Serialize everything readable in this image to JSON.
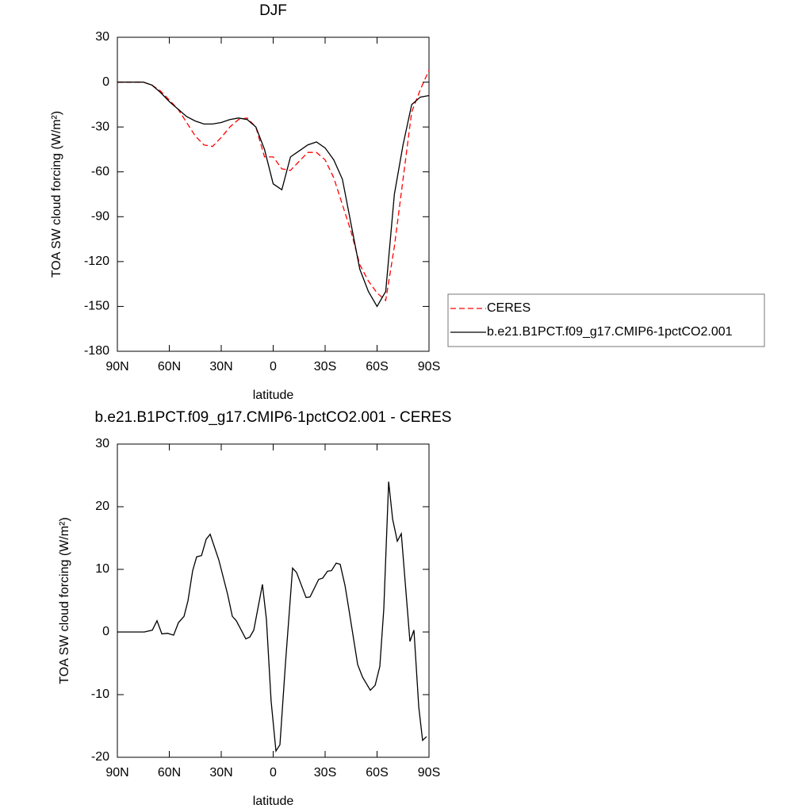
{
  "chart_data": [
    {
      "type": "line",
      "title": "DJF",
      "xlabel": "latitude",
      "ylabel": "TOA SW cloud forcing (W/m²)",
      "x": [
        90,
        85,
        80,
        75,
        70,
        65,
        60,
        55,
        50,
        45,
        40,
        35,
        30,
        25,
        20,
        15,
        10,
        5,
        0,
        -5,
        -10,
        -15,
        -20,
        -25,
        -30,
        -35,
        -40,
        -45,
        -50,
        -55,
        -60,
        -65,
        -70,
        -75,
        -80,
        -85,
        -90
      ],
      "series": [
        {
          "name": "CERES",
          "color": "#ff0000",
          "style": "dashed",
          "values": [
            0,
            0,
            0,
            0,
            -2,
            -6,
            -12,
            -18,
            -27,
            -36,
            -42,
            -43,
            -37,
            -30,
            -25,
            -24,
            -30,
            -50,
            -50,
            -58,
            -59,
            -53,
            -47,
            -47,
            -52,
            -64,
            -82,
            -100,
            -122,
            -133,
            -141,
            -146,
            -110,
            -65,
            -20,
            -5,
            8
          ]
        },
        {
          "name": "b.e21.B1PCT.f09_g17.CMIP6-1pctCO2.001",
          "color": "#000000",
          "style": "solid",
          "values": [
            0,
            0,
            0,
            0,
            -2,
            -7,
            -13,
            -18,
            -23,
            -26,
            -28,
            -28,
            -27,
            -25,
            -24,
            -25,
            -30,
            -45,
            -68,
            -72,
            -50,
            -46,
            -42,
            -40,
            -44,
            -52,
            -65,
            -95,
            -125,
            -140,
            -150,
            -140,
            -75,
            -42,
            -15,
            -10,
            -9
          ]
        }
      ],
      "xlim": [
        90,
        -90
      ],
      "xticks": [
        {
          "value": 90,
          "label": "90N"
        },
        {
          "value": 60,
          "label": "60N"
        },
        {
          "value": 30,
          "label": "30N"
        },
        0,
        {
          "value": -30,
          "label": "30S"
        },
        {
          "value": -60,
          "label": "60S"
        },
        {
          "value": -90,
          "label": "90S"
        }
      ],
      "ylim": [
        -180,
        30
      ],
      "yticks": [
        -180,
        -150,
        -120,
        -90,
        -60,
        -30,
        0,
        30
      ],
      "legend": "right"
    },
    {
      "type": "line",
      "title": "b.e21.B1PCT.f09_g17.CMIP6-1pctCO2.001 - CERES",
      "xlabel": "latitude",
      "ylabel": "TOA SW cloud forcing (W/m²)",
      "x": [
        90,
        74.4,
        69.8,
        67.1,
        64.3,
        61.1,
        57.5,
        54.7,
        51.5,
        49.2,
        46.5,
        44.2,
        41.4,
        38.7,
        36.4,
        31.4,
        26.3,
        23.6,
        21.3,
        15.8,
        13.5,
        11.2,
        6.2,
        3.9,
        1.2,
        -1.6,
        -3.9,
        -7.1,
        -9.4,
        -11.2,
        -13.5,
        -19,
        -21.3,
        -26.3,
        -28.6,
        -31.4,
        -33.7,
        -36.4,
        -38.7,
        -41.5,
        -43.8,
        -48.8,
        -51.6,
        -56.1,
        -58.9,
        -61.6,
        -63.9,
        -66.7,
        -69,
        -71.7,
        -74,
        -79,
        -81.3,
        -84.1,
        -86.3,
        -88.6
      ],
      "series": [
        {
          "color": "#000000",
          "style": "solid",
          "values": [
            0,
            0,
            0.3,
            1.8,
            -0.3,
            -0.2,
            -0.5,
            1.5,
            2.5,
            5,
            9.8,
            12,
            12.2,
            14.8,
            15.6,
            11.5,
            6,
            2.5,
            1.8,
            -1.1,
            -0.8,
            0.3,
            7.6,
            2,
            -11,
            -19,
            -18,
            -5,
            3.5,
            10.2,
            9.5,
            5.5,
            5.6,
            8.4,
            8.6,
            9.7,
            9.8,
            11,
            10.8,
            7.4,
            3.5,
            -5.2,
            -7.2,
            -9.3,
            -8.5,
            -5.5,
            3.7,
            24,
            18,
            14.5,
            15.7,
            -1.5,
            0.3,
            -12,
            -17.3,
            -16.7
          ]
        }
      ],
      "xlim": [
        90,
        -90
      ],
      "xticks": [
        {
          "value": 90,
          "label": "90N"
        },
        {
          "value": 60,
          "label": "60N"
        },
        {
          "value": 30,
          "label": "30N"
        },
        0,
        {
          "value": -30,
          "label": "30S"
        },
        {
          "value": -60,
          "label": "60S"
        },
        {
          "value": -90,
          "label": "90S"
        }
      ],
      "ylim": [
        -20,
        30
      ],
      "yticks": [
        -20,
        -10,
        0,
        10,
        20,
        30
      ]
    }
  ]
}
